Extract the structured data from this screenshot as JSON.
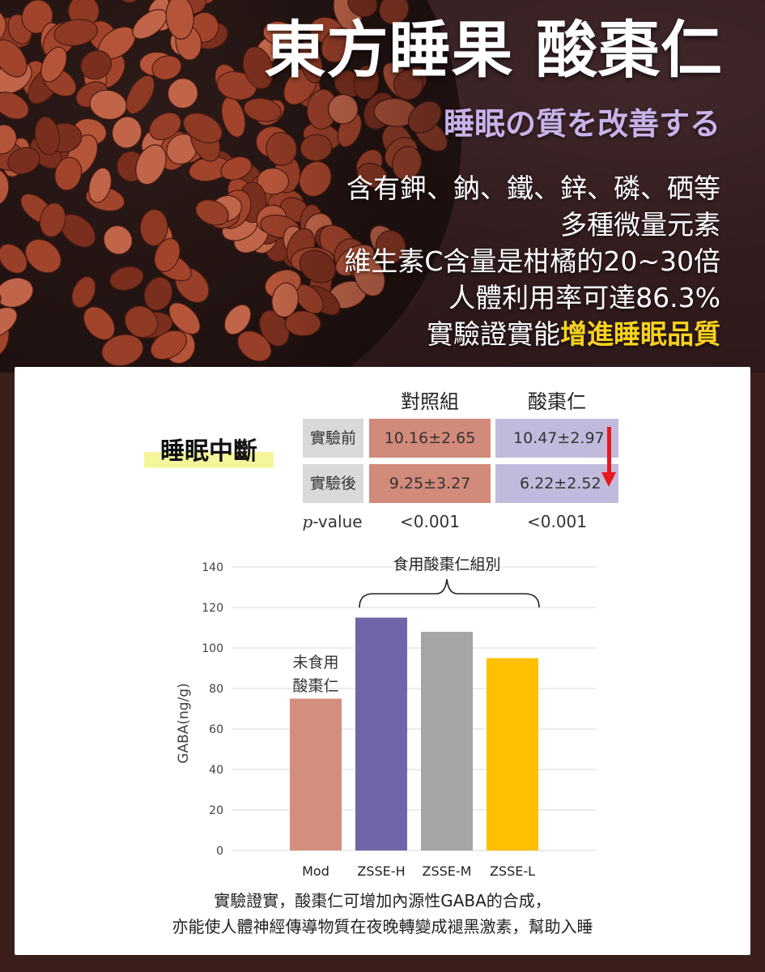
{
  "hero": {
    "title": "東方睡果 酸棗仁",
    "subtitle": "睡眠の質を改善する",
    "lines": [
      "含有鉀、鈉、鐵、鋅、磷、硒等",
      "多種微量元素",
      "維生素C含量是柑橘的20~30倍",
      "人體利用率可達86.3%"
    ],
    "last_line_prefix": "實驗證實能",
    "last_line_highlight": "增進睡眠品質",
    "highlight_color": "#f7d21e",
    "subtitle_color": "#c9b2ea"
  },
  "table": {
    "label": "睡眠中斷",
    "headers": [
      "對照組",
      "酸棗仁"
    ],
    "rows": [
      {
        "label": "實驗前",
        "control": "10.16±2.65",
        "treatment": "10.47±2.97"
      },
      {
        "label": "實驗後",
        "control": "9.25±3.27",
        "treatment": "6.22±2.52"
      }
    ],
    "pvalue_label_italic": "p",
    "pvalue_label_rest": "-value",
    "pvalue_control": "<0.001",
    "pvalue_treatment": "<0.001",
    "colors": {
      "control": "#d28a7a",
      "treatment": "#c1badc",
      "row_header": "#d9d9d9",
      "arrow": "#e8171b"
    },
    "arrow_icon": "down-arrow-icon"
  },
  "chart_data": {
    "type": "bar",
    "categories": [
      "Mod",
      "ZSSE-H",
      "ZSSE-M",
      "ZSSE-L"
    ],
    "values": [
      75,
      115,
      108,
      95
    ],
    "colors": [
      "#d48e7e",
      "#7065a8",
      "#a5a5a5",
      "#ffc000"
    ],
    "ylabel": "GABA(ng/g)",
    "xlabel": "",
    "ylim": [
      0,
      140
    ],
    "yticks": [
      0,
      20,
      40,
      60,
      80,
      100,
      120,
      140
    ],
    "grid": true,
    "annotations": {
      "mod_label_line1": "未食用",
      "mod_label_line2": "酸棗仁",
      "group_label": "食用酸棗仁組別"
    }
  },
  "caption": {
    "line1": "實驗證實，酸棗仁可增加內源性GABA的合成，",
    "line2": "亦能使人體神經傳導物質在夜晚轉變成褪黑激素，幫助入睡"
  }
}
